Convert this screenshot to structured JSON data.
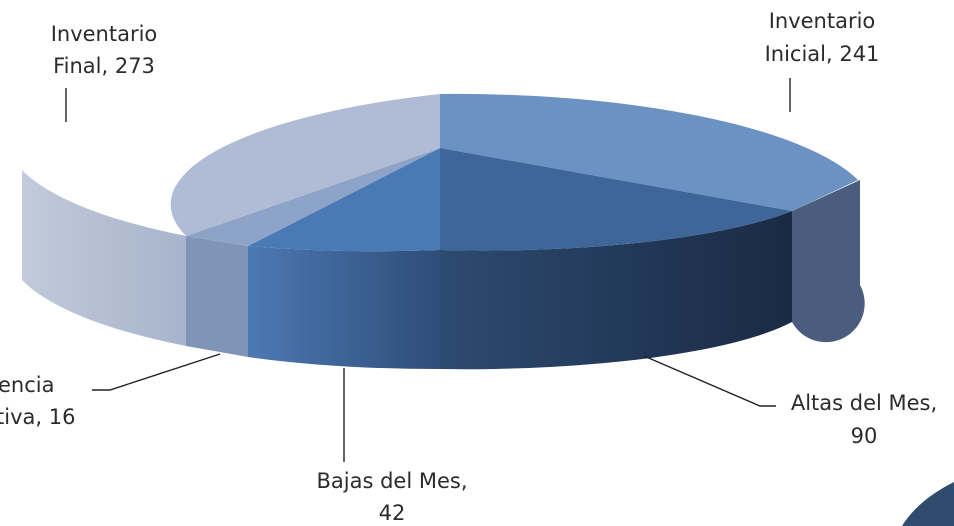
{
  "chart_data": {
    "type": "pie",
    "title": "",
    "style": "3d-exploded",
    "slices": [
      {
        "label_lines": [
          "Inventario",
          "Inicial, 241"
        ],
        "value": 241,
        "color": "#6b92c3"
      },
      {
        "label_lines": [
          "Altas del Mes,",
          "90"
        ],
        "value": 90,
        "color": "#3d6699"
      },
      {
        "label_lines": [
          "Bajas del Mes,",
          "42"
        ],
        "value": 42,
        "color": "#4a7ab6"
      },
      {
        "label_lines": [
          "encia",
          "tiva, 16"
        ],
        "value": 16,
        "color": "#8ea3c8"
      },
      {
        "label_lines": [
          "Inventario",
          "Final, 273"
        ],
        "value": 273,
        "color": "#b0bcd5"
      }
    ]
  }
}
